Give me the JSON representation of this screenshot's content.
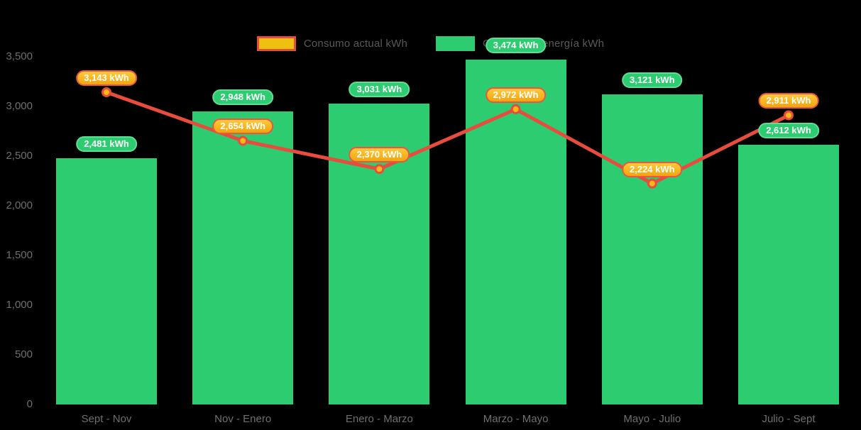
{
  "chart_data": {
    "type": "combo",
    "title": "",
    "xlabel": "",
    "ylabel": "",
    "categories": [
      "Sept - Nov",
      "Nov - Enero",
      "Enero - Marzo",
      "Marzo - Mayo",
      "Mayo - Julio",
      "Julio - Sept"
    ],
    "series": [
      {
        "name": "Generación energía kWh",
        "type": "bar",
        "color": "#2ecc71",
        "values": [
          2481,
          2948,
          3031,
          3474,
          3121,
          2612
        ],
        "labels": [
          "2,481 kWh",
          "2,948 kWh",
          "3,031 kWh",
          "3,474 kWh",
          "3,121 kWh",
          "2,612 kWh"
        ]
      },
      {
        "name": "Consumo actual kWh",
        "type": "line",
        "color": "#e74c3c",
        "marker_color": "#fdb813",
        "values": [
          3143,
          2654,
          2370,
          2972,
          2224,
          2911
        ],
        "labels": [
          "3,143 kWh",
          "2,654 kWh",
          "2,370 kWh",
          "2,972 kWh",
          "2,224 kWh",
          "2,911 kWh"
        ]
      }
    ],
    "yticks": [
      "0",
      "500",
      "1,000",
      "1,500",
      "2,000",
      "2,500",
      "3,000",
      "3,500"
    ],
    "ytick_values": [
      0,
      500,
      1000,
      1500,
      2000,
      2500,
      3000,
      3500
    ],
    "ylim": [
      0,
      3750
    ],
    "grid": false,
    "legend_position": "top-center"
  },
  "legend": {
    "items": [
      {
        "label": "Consumo actual kWh",
        "swatch_fill": "#eec111",
        "swatch_border": "#e74c3c"
      },
      {
        "label": "Generación energía kWh",
        "swatch_fill": "#2ecc71",
        "swatch_border": "#2ecc71"
      }
    ]
  },
  "colors": {
    "background": "#000000",
    "axis_text": "#6f6f6f",
    "legend_text": "#58595b",
    "bar": "#2ecc71",
    "line": "#e74c3c",
    "point_fill": "#fdb813",
    "badge_green_bg": "#2ecc71",
    "badge_green_border": "#5fdd95",
    "badge_orange_top": "#fdc93a",
    "badge_orange_bottom": "#f2a50d",
    "badge_orange_border": "#ec5540",
    "badge_text": "#ffffff"
  }
}
